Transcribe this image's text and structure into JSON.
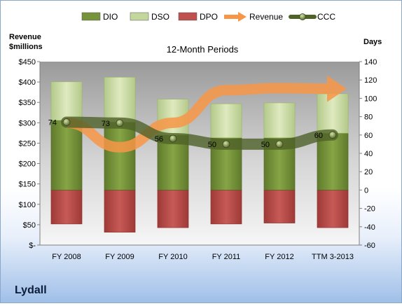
{
  "company": "Lydall",
  "chart_data": {
    "type": "bar",
    "title": "12-Month Periods",
    "ylabel_left": [
      "Revenue",
      "$millions"
    ],
    "ylabel_right": "Days",
    "categories": [
      "FY 2008",
      "FY 2009",
      "FY 2010",
      "FY 2011",
      "FY 2012",
      "TTM 3-2013"
    ],
    "left_axis": {
      "min": 0,
      "max": 450,
      "step": 50,
      "tick_labels": [
        "$-",
        "$50",
        "$100",
        "$150",
        "$200",
        "$250",
        "$300",
        "$350",
        "$400",
        "$450"
      ]
    },
    "right_axis": {
      "min": -60,
      "max": 140,
      "step": 20,
      "tick_labels": [
        "-60",
        "-40",
        "-20",
        "0",
        "20",
        "40",
        "60",
        "80",
        "100",
        "120",
        "140"
      ]
    },
    "legend": {
      "position": "top",
      "entries": [
        {
          "name": "DIO",
          "kind": "bar",
          "color": "#77933c"
        },
        {
          "name": "DSO",
          "kind": "bar",
          "color": "#c3d69b"
        },
        {
          "name": "DPO",
          "kind": "bar",
          "color": "#c0504d"
        },
        {
          "name": "Revenue",
          "kind": "arrow",
          "color": "#f79646"
        },
        {
          "name": "CCC",
          "kind": "line",
          "color": "#4f6228"
        }
      ]
    },
    "series": [
      {
        "name": "DIO",
        "axis": "right",
        "values": [
          76,
          74,
          60,
          57,
          57,
          62
        ]
      },
      {
        "name": "DSO",
        "axis": "right",
        "values": [
          42,
          49,
          39,
          37,
          38,
          43
        ]
      },
      {
        "name": "DPO",
        "axis": "right",
        "values": [
          -37,
          -46,
          -41,
          -37,
          -36,
          -41
        ]
      },
      {
        "name": "Revenue",
        "axis": "left",
        "values": [
          300,
          240,
          300,
          380,
          385,
          380
        ]
      },
      {
        "name": "CCC",
        "axis": "right",
        "values": [
          74,
          73,
          56,
          50,
          50,
          60
        ],
        "labels": [
          "74",
          "73",
          "56",
          "50",
          "50",
          "60"
        ]
      }
    ],
    "grid": false
  }
}
